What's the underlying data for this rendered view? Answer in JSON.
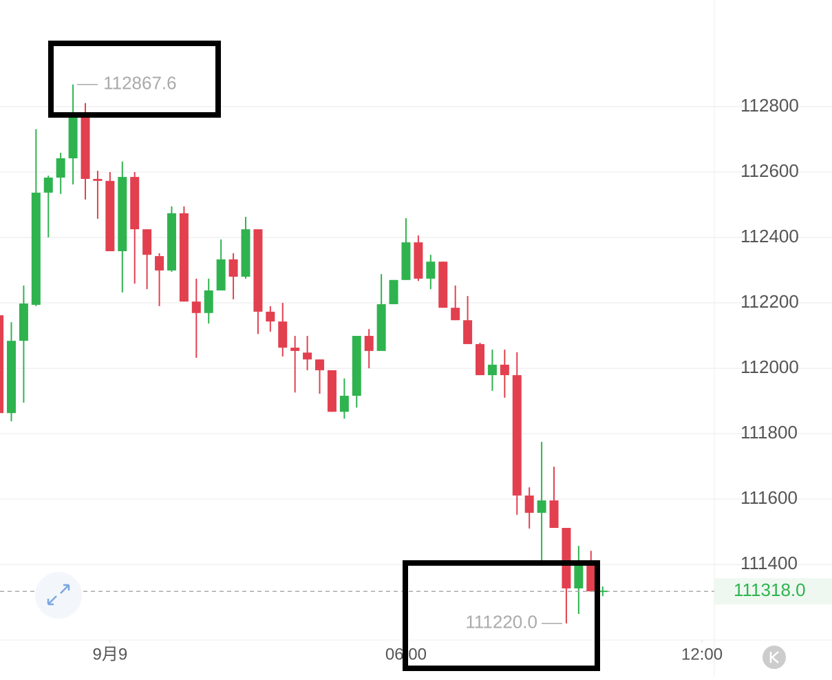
{
  "chart_data": {
    "type": "candlestick",
    "x": [
      -2.25,
      -2,
      -1.75,
      -1.5,
      -1.25,
      -1,
      -0.75,
      -0.5,
      -0.25,
      0,
      0.25,
      0.5,
      0.75,
      1,
      1.25,
      1.5,
      1.75,
      2,
      2.25,
      2.5,
      2.75,
      3,
      3.25,
      3.5,
      3.75,
      4,
      4.25,
      4.5,
      4.75,
      5,
      5.25,
      5.5,
      5.75,
      6,
      6.25,
      6.5,
      6.75,
      7,
      7.25,
      7.5,
      7.75,
      8,
      8.25,
      8.5,
      8.75,
      9,
      9.25,
      9.5,
      9.75
    ],
    "open": [
      112162,
      111863,
      112084,
      112194,
      112537,
      112583,
      112642,
      112768,
      112579,
      112573,
      112358,
      112585,
      112425,
      112343,
      112299,
      112474,
      112204,
      112169,
      112238,
      112333,
      112280,
      112425,
      112173,
      112143,
      112063,
      112048,
      112027,
      111994,
      111867,
      111916,
      112099,
      112053,
      112196,
      112270,
      112385,
      112274,
      112326,
      112185,
      112147,
      112074,
      111979,
      112011,
      111979,
      111611,
      111558,
      111596,
      111512,
      111327,
      111411
    ],
    "high": [
      112267,
      112141,
      112253,
      112731,
      112589,
      112659,
      112867.6,
      112811,
      112604,
      112600,
      112632,
      112600,
      112425,
      112352,
      112495,
      112495,
      112274,
      112274,
      112394,
      112352,
      112463,
      112425,
      112190,
      112200,
      112099,
      112099,
      112027,
      111994,
      111969,
      112099,
      112120,
      112288,
      112270,
      112459,
      112406,
      112347,
      112326,
      112253,
      112221,
      112078,
      112057,
      112057,
      112049,
      111636,
      111775,
      111699,
      111512,
      111457,
      111442
    ],
    "low": [
      111800,
      111838,
      111895,
      112190,
      112400,
      112533,
      112562,
      112516,
      112457,
      112358,
      112232,
      112259,
      112242,
      112190,
      112295,
      112204,
      112032,
      112137,
      112238,
      112211,
      112274,
      112105,
      112112,
      112036,
      111926,
      111994,
      111922,
      111867,
      111846,
      111880,
      112000,
      112053,
      112196,
      112270,
      112267,
      112242,
      112185,
      112147,
      112074,
      111979,
      111931,
      111910,
      111552,
      111510,
      111404,
      111512,
      111220,
      111249,
      111316
    ],
    "close": [
      111863,
      112084,
      112198,
      112537,
      112583,
      112642,
      112768,
      112579,
      112573,
      112358,
      112585,
      112425,
      112347,
      112299,
      112474,
      112204,
      112169,
      112238,
      112333,
      112280,
      112425,
      112173,
      112143,
      112063,
      112053,
      112027,
      111994,
      111867,
      111916,
      112099,
      112053,
      112196,
      112270,
      112385,
      112274,
      112326,
      112185,
      112147,
      112074,
      111979,
      112011,
      111979,
      111611,
      111558,
      111596,
      111512,
      111327,
      111411,
      111318
    ],
    "up_color": "#2fb34f",
    "down_color": "#e2404f",
    "xlim": [
      -2.23,
      12.25
    ],
    "xticks": [
      {
        "value": 0,
        "label": "9月9"
      },
      {
        "value": 6,
        "label": "06:00"
      },
      {
        "value": 12,
        "label": "12:00"
      }
    ],
    "ylim": [
      111169,
      113126
    ],
    "yticks": [
      111400,
      111600,
      111800,
      112000,
      112200,
      112400,
      112600,
      112800
    ],
    "grid": true,
    "max_marker": {
      "value": 112867.6,
      "label": "112867.6"
    },
    "min_marker": {
      "value": 111220,
      "label": "111220.0"
    },
    "last_price": {
      "value": 111318,
      "label": "111318.0"
    }
  }
}
